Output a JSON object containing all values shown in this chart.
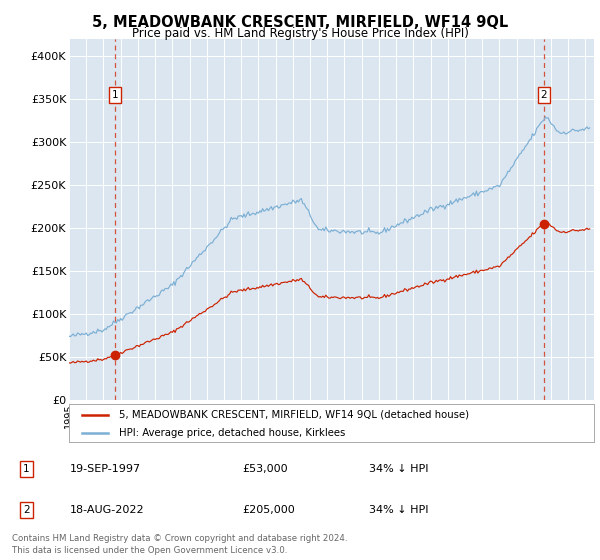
{
  "title": "5, MEADOWBANK CRESCENT, MIRFIELD, WF14 9QL",
  "subtitle": "Price paid vs. HM Land Registry's House Price Index (HPI)",
  "plot_bg_color": "#dce6f0",
  "grid_color": "#ffffff",
  "line_color_hpi": "#7bafd4",
  "line_color_property": "#cc2200",
  "ylabel_ticks": [
    "£0",
    "£50K",
    "£100K",
    "£150K",
    "£200K",
    "£250K",
    "£300K",
    "£350K",
    "£400K"
  ],
  "ytick_values": [
    0,
    50000,
    100000,
    150000,
    200000,
    250000,
    300000,
    350000,
    400000
  ],
  "ylim": [
    0,
    420000
  ],
  "legend_label_property": "5, MEADOWBANK CRESCENT, MIRFIELD, WF14 9QL (detached house)",
  "legend_label_hpi": "HPI: Average price, detached house, Kirklees",
  "table_row1": [
    "1",
    "19-SEP-1997",
    "£53,000",
    "34% ↓ HPI"
  ],
  "table_row2": [
    "2",
    "18-AUG-2022",
    "£205,000",
    "34% ↓ HPI"
  ],
  "footer": "Contains HM Land Registry data © Crown copyright and database right 2024.\nThis data is licensed under the Open Government Licence v3.0."
}
